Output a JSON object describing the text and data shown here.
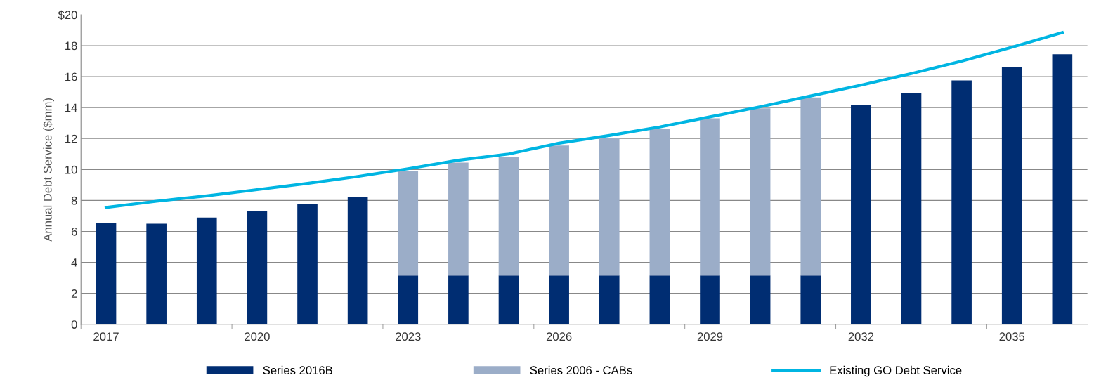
{
  "chart_data": {
    "type": "bar",
    "stacked": true,
    "ylabel": "Annual Debt Service ($mm)",
    "categories": [
      "2017",
      null,
      null,
      "2020",
      null,
      null,
      "2023",
      null,
      null,
      "2026",
      null,
      null,
      "2029",
      null,
      null,
      "2032",
      null,
      null,
      "2035",
      null
    ],
    "series": [
      {
        "name": "Series 2016B",
        "color": "#002d72",
        "values": [
          6.55,
          6.5,
          6.9,
          7.3,
          7.75,
          8.2,
          3.15,
          3.15,
          3.15,
          3.15,
          3.15,
          3.15,
          3.15,
          3.15,
          3.15,
          14.15,
          14.95,
          15.75,
          16.6,
          17.45
        ]
      },
      {
        "name": "Series 2006 - CABs",
        "color": "#9badc8",
        "values": [
          null,
          null,
          null,
          null,
          null,
          null,
          6.75,
          7.3,
          7.65,
          8.4,
          8.9,
          9.5,
          10.15,
          10.8,
          11.5,
          null,
          null,
          null,
          null,
          null
        ]
      },
      {
        "name": "Existing GO Debt Service",
        "type": "line",
        "color": "#00b5e2",
        "values": [
          7.55,
          7.95,
          8.3,
          8.7,
          9.1,
          9.55,
          10.05,
          10.6,
          11.0,
          11.7,
          12.2,
          12.75,
          13.4,
          14.05,
          14.75,
          15.45,
          16.2,
          17.0,
          17.9,
          18.85
        ]
      }
    ],
    "ylim": [
      0,
      20
    ],
    "yticks": [
      0,
      2,
      4,
      6,
      8,
      10,
      12,
      14,
      16,
      18,
      {
        "value": 20,
        "label": "$20"
      }
    ],
    "grid": "y",
    "legend": "bottom"
  }
}
